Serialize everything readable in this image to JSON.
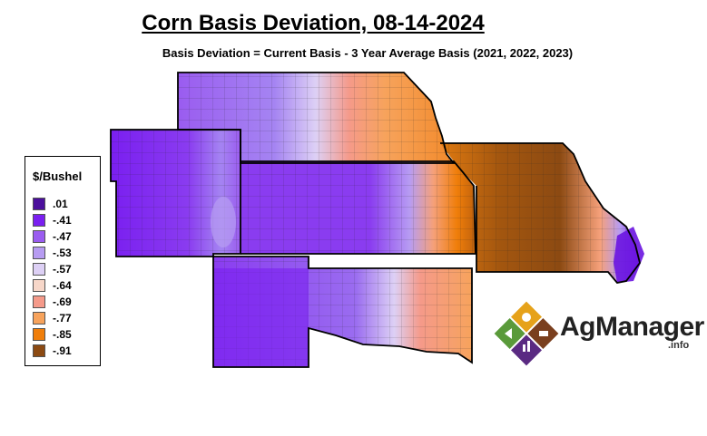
{
  "title": "Corn Basis Deviation, 08-14-2024",
  "subtitle": "Basis Deviation = Current Basis - 3 Year Average Basis (2021, 2022, 2023)",
  "legend": {
    "title": "$/Bushel",
    "items": [
      {
        "label": ".01",
        "color": "#4b0f9c"
      },
      {
        "label": "-.41",
        "color": "#7a1ff0"
      },
      {
        "label": "-.47",
        "color": "#9a5cf0"
      },
      {
        "label": "-.53",
        "color": "#b79cf2"
      },
      {
        "label": "-.57",
        "color": "#ddd0f5"
      },
      {
        "label": "-.64",
        "color": "#f7d7c9"
      },
      {
        "label": "-.69",
        "color": "#f59a8a"
      },
      {
        "label": "-.77",
        "color": "#f7a35c"
      },
      {
        "label": "-.85",
        "color": "#f07e0a"
      },
      {
        "label": "-.91",
        "color": "#8c4a12"
      }
    ]
  },
  "logo": {
    "brand": "AgManager",
    "suffix": ".info",
    "colors": {
      "green": "#5a9a3a",
      "gold": "#e6a21a",
      "brown": "#7a3f1e",
      "purple": "#5a2a82"
    }
  }
}
